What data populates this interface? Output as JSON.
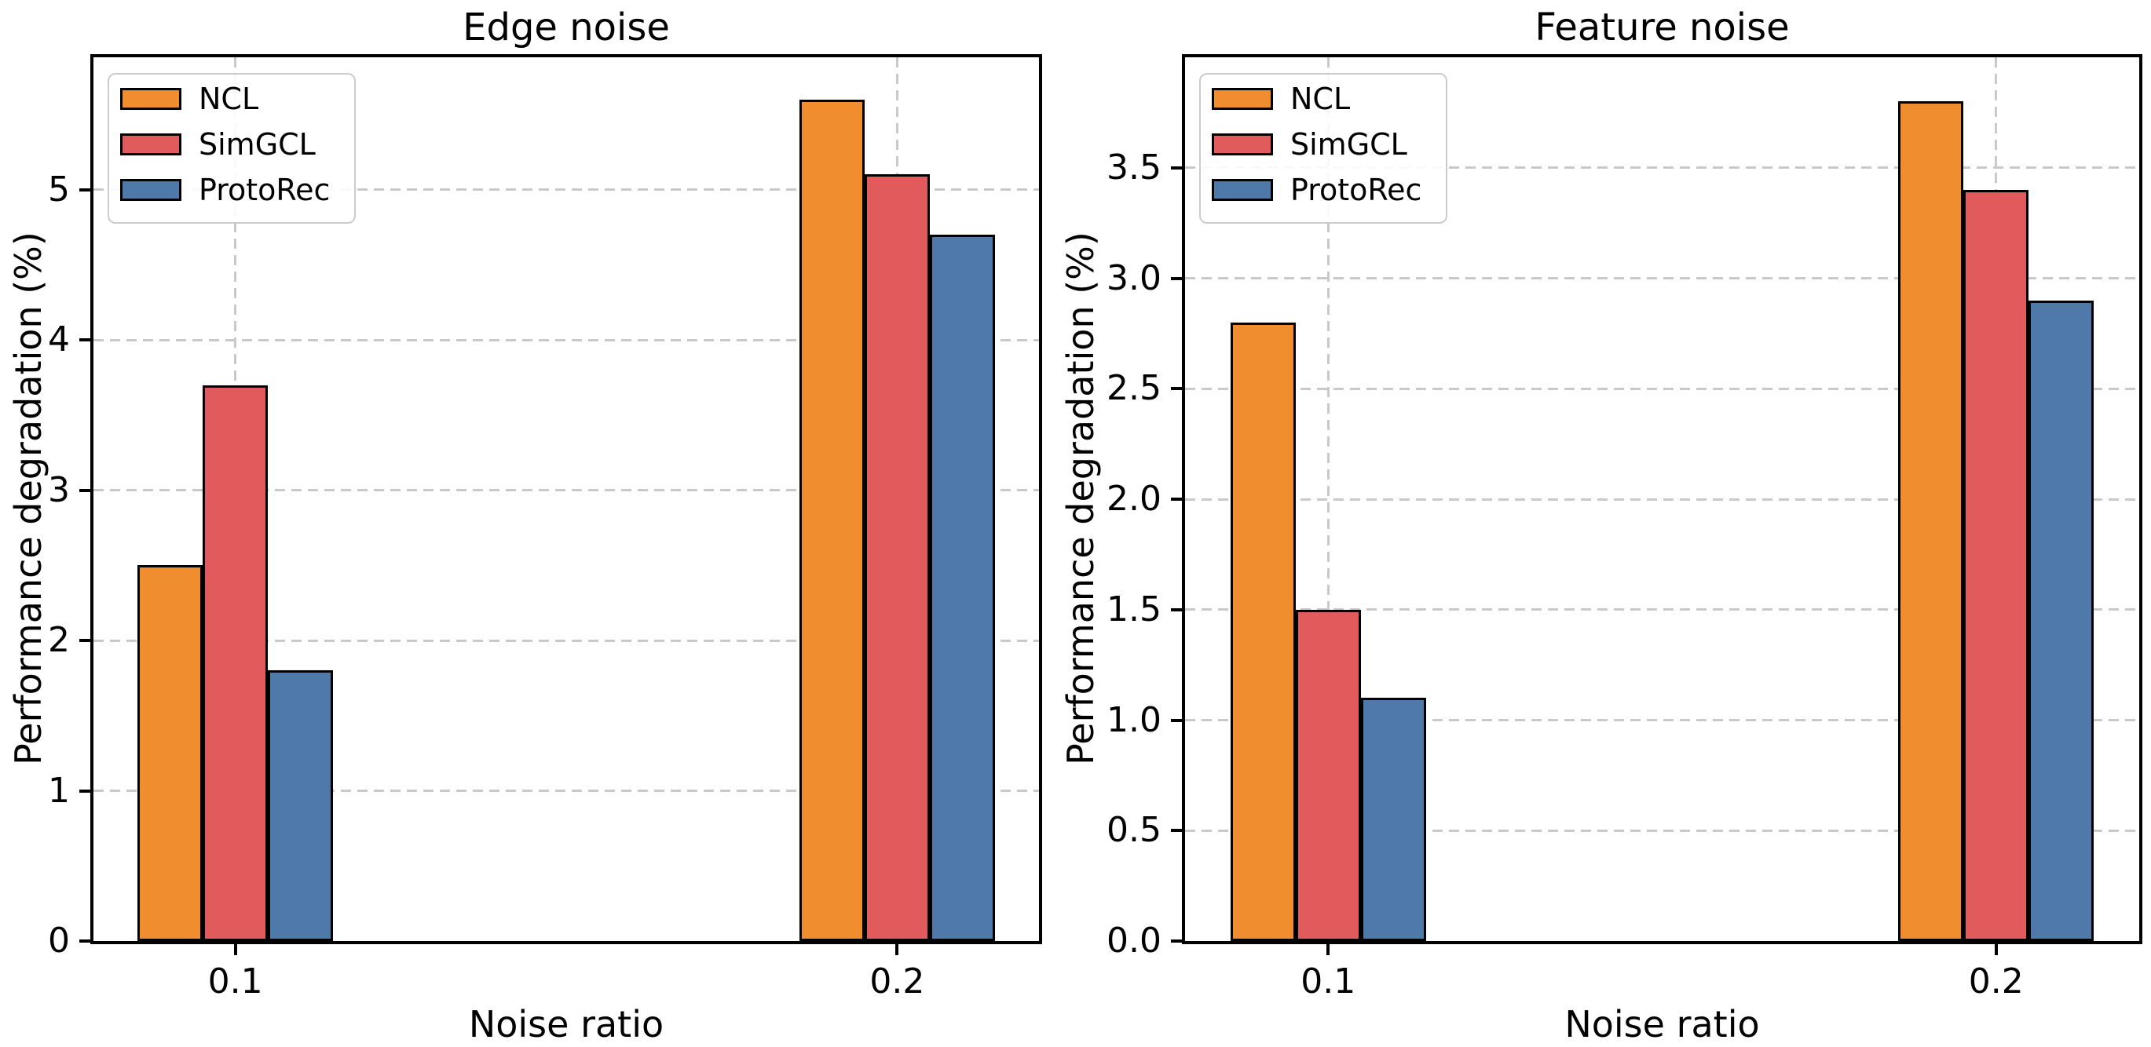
{
  "figure": {
    "background": "#ffffff"
  },
  "chart_data": [
    {
      "type": "bar",
      "title": "Edge noise",
      "xlabel": "Noise ratio",
      "ylabel": "Performance degradation (%)",
      "categories": [
        "0.1",
        "0.2"
      ],
      "series": [
        {
          "name": "NCL",
          "color": "#f08d2e",
          "values": [
            2.5,
            5.6
          ]
        },
        {
          "name": "SimGCL",
          "color": "#e15a5c",
          "values": [
            3.7,
            5.1
          ]
        },
        {
          "name": "ProtoRec",
          "color": "#4f79a8",
          "values": [
            1.8,
            4.7
          ]
        }
      ],
      "ylim": [
        0,
        5.88
      ],
      "yticks": [
        {
          "value": 0,
          "label": "0"
        },
        {
          "value": 1,
          "label": "1"
        },
        {
          "value": 2,
          "label": "2"
        },
        {
          "value": 3,
          "label": "3"
        },
        {
          "value": 4,
          "label": "4"
        },
        {
          "value": 5,
          "label": "5"
        }
      ],
      "grid": true,
      "grid_style": "dashed",
      "grid_color": "#c9c9c9",
      "bar_edge_color": "#000000",
      "legend_position": "upper left"
    },
    {
      "type": "bar",
      "title": "Feature noise",
      "xlabel": "Noise ratio",
      "ylabel": "Performance degradation (%)",
      "categories": [
        "0.1",
        "0.2"
      ],
      "series": [
        {
          "name": "NCL",
          "color": "#f08d2e",
          "values": [
            2.8,
            3.8
          ]
        },
        {
          "name": "SimGCL",
          "color": "#e15a5c",
          "values": [
            1.5,
            3.4
          ]
        },
        {
          "name": "ProtoRec",
          "color": "#4f79a8",
          "values": [
            1.1,
            2.9
          ]
        }
      ],
      "ylim": [
        0,
        4.0
      ],
      "yticks": [
        {
          "value": 0.0,
          "label": "0.0"
        },
        {
          "value": 0.5,
          "label": "0.5"
        },
        {
          "value": 1.0,
          "label": "1.0"
        },
        {
          "value": 1.5,
          "label": "1.5"
        },
        {
          "value": 2.0,
          "label": "2.0"
        },
        {
          "value": 2.5,
          "label": "2.5"
        },
        {
          "value": 3.0,
          "label": "3.0"
        },
        {
          "value": 3.5,
          "label": "3.5"
        }
      ],
      "grid": true,
      "grid_style": "dashed",
      "grid_color": "#c9c9c9",
      "bar_edge_color": "#000000",
      "legend_position": "upper left"
    }
  ]
}
